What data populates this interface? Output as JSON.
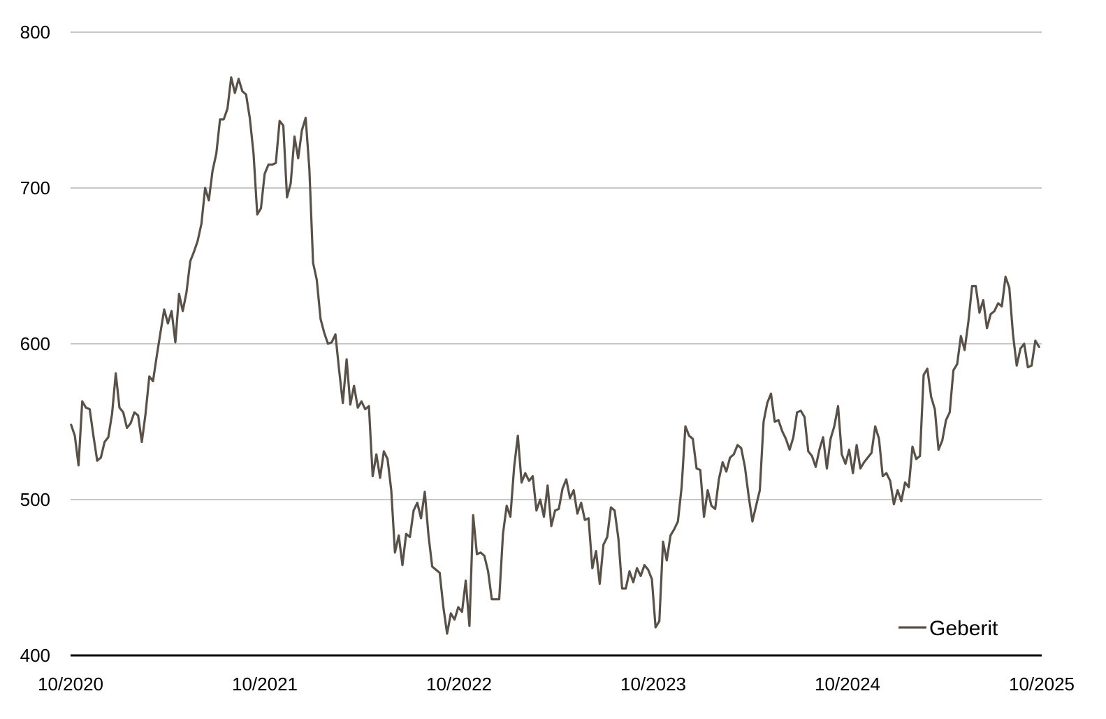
{
  "chart_data": {
    "type": "line",
    "title": "",
    "xlabel": "",
    "ylabel": "",
    "ylim": [
      400,
      800
    ],
    "y_ticks": [
      "400",
      "500",
      "600",
      "700",
      "800"
    ],
    "x_ticks": [
      "10/2020",
      "10/2021",
      "10/2022",
      "10/2023",
      "10/2024",
      "10/2025"
    ],
    "xlim": [
      "2020-10",
      "2025-10"
    ],
    "grid": "horizontal",
    "legend_position": "bottom-right",
    "series": [
      {
        "name": "Geberit",
        "color": "#595148",
        "x": [
          "2020-10-02",
          "2020-10-09",
          "2020-10-16",
          "2020-10-23",
          "2020-10-30",
          "2020-11-06",
          "2020-11-13",
          "2020-11-20",
          "2020-11-27",
          "2020-12-04",
          "2020-12-11",
          "2020-12-18",
          "2020-12-25",
          "2021-01-01",
          "2021-01-08",
          "2021-01-15",
          "2021-01-22",
          "2021-01-29",
          "2021-02-05",
          "2021-02-12",
          "2021-02-19",
          "2021-02-26",
          "2021-03-05",
          "2021-03-12",
          "2021-03-19",
          "2021-03-26",
          "2021-04-02",
          "2021-04-09",
          "2021-04-16",
          "2021-04-23",
          "2021-04-30",
          "2021-05-07",
          "2021-05-14",
          "2021-05-21",
          "2021-05-28",
          "2021-06-04",
          "2021-06-11",
          "2021-06-18",
          "2021-06-25",
          "2021-07-02",
          "2021-07-09",
          "2021-07-16",
          "2021-07-23",
          "2021-07-30",
          "2021-08-06",
          "2021-08-13",
          "2021-08-20",
          "2021-08-27",
          "2021-09-03",
          "2021-09-10",
          "2021-09-17",
          "2021-09-24",
          "2021-10-01",
          "2021-10-08",
          "2021-10-15",
          "2021-10-22",
          "2021-10-29",
          "2021-11-05",
          "2021-11-12",
          "2021-11-19",
          "2021-11-26",
          "2021-12-03",
          "2021-12-10",
          "2021-12-17",
          "2021-12-24",
          "2021-12-31",
          "2022-01-07",
          "2022-01-14",
          "2022-01-21",
          "2022-01-28",
          "2022-02-04",
          "2022-02-11",
          "2022-02-18",
          "2022-02-25",
          "2022-03-04",
          "2022-03-11",
          "2022-03-18",
          "2022-03-25",
          "2022-04-01",
          "2022-04-08",
          "2022-04-15",
          "2022-04-22",
          "2022-04-29",
          "2022-05-06",
          "2022-05-13",
          "2022-05-20",
          "2022-05-27",
          "2022-06-03",
          "2022-06-10",
          "2022-06-17",
          "2022-06-24",
          "2022-07-01",
          "2022-07-08",
          "2022-07-15",
          "2022-07-22",
          "2022-07-29",
          "2022-08-05",
          "2022-08-12",
          "2022-08-19",
          "2022-08-26",
          "2022-09-02",
          "2022-09-09",
          "2022-09-16",
          "2022-09-23",
          "2022-09-30",
          "2022-10-07",
          "2022-10-14",
          "2022-10-21",
          "2022-10-28",
          "2022-11-04",
          "2022-11-11",
          "2022-11-18",
          "2022-11-25",
          "2022-12-02",
          "2022-12-09",
          "2022-12-16",
          "2022-12-23",
          "2022-12-30",
          "2023-01-06",
          "2023-01-13",
          "2023-01-20",
          "2023-01-27",
          "2023-02-03",
          "2023-02-10",
          "2023-02-17",
          "2023-02-24",
          "2023-03-03",
          "2023-03-10",
          "2023-03-17",
          "2023-03-24",
          "2023-03-31",
          "2023-04-07",
          "2023-04-14",
          "2023-04-21",
          "2023-04-28",
          "2023-05-05",
          "2023-05-12",
          "2023-05-19",
          "2023-05-26",
          "2023-06-02",
          "2023-06-09",
          "2023-06-16",
          "2023-06-23",
          "2023-06-30",
          "2023-07-07",
          "2023-07-14",
          "2023-07-21",
          "2023-07-28",
          "2023-08-04",
          "2023-08-11",
          "2023-08-18",
          "2023-08-25",
          "2023-09-01",
          "2023-09-08",
          "2023-09-15",
          "2023-09-22",
          "2023-09-29",
          "2023-10-06",
          "2023-10-13",
          "2023-10-20",
          "2023-10-27",
          "2023-11-03",
          "2023-11-10",
          "2023-11-17",
          "2023-11-24",
          "2023-12-01",
          "2023-12-08",
          "2023-12-15",
          "2023-12-22",
          "2023-12-29",
          "2024-01-05",
          "2024-01-12",
          "2024-01-19",
          "2024-01-26",
          "2024-02-02",
          "2024-02-09",
          "2024-02-16",
          "2024-02-23",
          "2024-03-01",
          "2024-03-08",
          "2024-03-15",
          "2024-03-22",
          "2024-03-29",
          "2024-04-05",
          "2024-04-12",
          "2024-04-19",
          "2024-04-26",
          "2024-05-03",
          "2024-05-10",
          "2024-05-17",
          "2024-05-24",
          "2024-05-31",
          "2024-06-07",
          "2024-06-14",
          "2024-06-21",
          "2024-06-28",
          "2024-07-05",
          "2024-07-12",
          "2024-07-19",
          "2024-07-26",
          "2024-08-02",
          "2024-08-09",
          "2024-08-16",
          "2024-08-23",
          "2024-08-30",
          "2024-09-06",
          "2024-09-13",
          "2024-09-20",
          "2024-09-27",
          "2024-10-04",
          "2024-10-11",
          "2024-10-18",
          "2024-10-25",
          "2024-11-01",
          "2024-11-08",
          "2024-11-15",
          "2024-11-22",
          "2024-11-29",
          "2024-12-06",
          "2024-12-13",
          "2024-12-20",
          "2024-12-27",
          "2025-01-03",
          "2025-01-10",
          "2025-01-17",
          "2025-01-24",
          "2025-01-31",
          "2025-02-07",
          "2025-02-14",
          "2025-02-21",
          "2025-02-28",
          "2025-03-07",
          "2025-03-14",
          "2025-03-21",
          "2025-03-28",
          "2025-04-04",
          "2025-04-11",
          "2025-04-18",
          "2025-04-25",
          "2025-05-02",
          "2025-05-09",
          "2025-05-16",
          "2025-05-23",
          "2025-05-30",
          "2025-06-06",
          "2025-06-13",
          "2025-06-20",
          "2025-06-27",
          "2025-07-04",
          "2025-07-11",
          "2025-07-18",
          "2025-07-25",
          "2025-08-01",
          "2025-08-08",
          "2025-08-15",
          "2025-08-22",
          "2025-08-29",
          "2025-09-05",
          "2025-09-12",
          "2025-09-19",
          "2025-09-26"
        ],
        "values": [
          548,
          541,
          522,
          563,
          559,
          558,
          541,
          525,
          527,
          537,
          540,
          555,
          581,
          559,
          556,
          546,
          549,
          556,
          554,
          537,
          555,
          579,
          576,
          592,
          607,
          622,
          613,
          621,
          601,
          632,
          621,
          633,
          653,
          659,
          666,
          677,
          700,
          692,
          711,
          722,
          744,
          744,
          751,
          771,
          761,
          770,
          762,
          760,
          745,
          722,
          683,
          687,
          709,
          715,
          715,
          716,
          743,
          740,
          694,
          703,
          733,
          719,
          737,
          745,
          712,
          652,
          641,
          616,
          607,
          600,
          601,
          606,
          583,
          562,
          590,
          561,
          573,
          559,
          563,
          558,
          560,
          515,
          529,
          514,
          531,
          526,
          506,
          466,
          477,
          458,
          478,
          476,
          493,
          498,
          488,
          505,
          477,
          457,
          455,
          453,
          431,
          414,
          427,
          423,
          431,
          428,
          448,
          419,
          490,
          465,
          466,
          464,
          454,
          436,
          436,
          436,
          478,
          496,
          489,
          521,
          541,
          511,
          517,
          512,
          515,
          493,
          500,
          489,
          509,
          483,
          493,
          494,
          507,
          513,
          501,
          506,
          491,
          498,
          487,
          488,
          456,
          467,
          446,
          471,
          476,
          495,
          493,
          475,
          443,
          443,
          454,
          447,
          456,
          451,
          458,
          455,
          449,
          418,
          422,
          473,
          461,
          477,
          481,
          486,
          508,
          547,
          541,
          539,
          520,
          519,
          489,
          506,
          496,
          494,
          513,
          524,
          518,
          527,
          529,
          535,
          533,
          521,
          502,
          486,
          496,
          506,
          550,
          562,
          568,
          550,
          551,
          544,
          539,
          532,
          540,
          556,
          557,
          553,
          531,
          528,
          521,
          532,
          540,
          520,
          539,
          547,
          560,
          529,
          523,
          532,
          517,
          535,
          520,
          524,
          527,
          530,
          547,
          539,
          515,
          517,
          512,
          497,
          506,
          499,
          511,
          508,
          534,
          526,
          528,
          580,
          584,
          566,
          558,
          532,
          538,
          551,
          556,
          583,
          587,
          605,
          596,
          614,
          637,
          637,
          620,
          628,
          610,
          619,
          621,
          626,
          624,
          643,
          636,
          606,
          586,
          597,
          600,
          585,
          586,
          602,
          598
        ]
      }
    ]
  }
}
